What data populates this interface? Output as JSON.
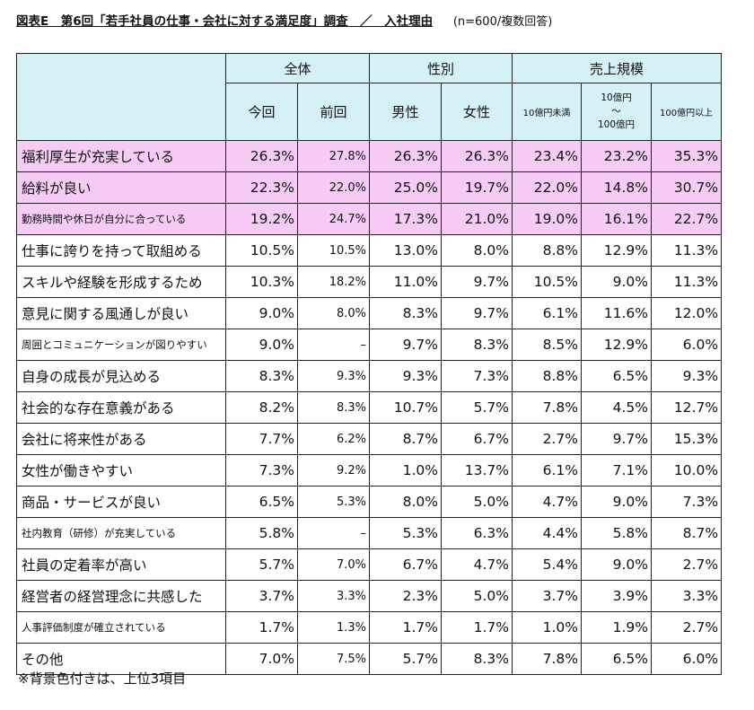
{
  "title": {
    "main": "図表E　第6回「若手社員の仕事・会社に対する満足度」調査　／　入社理由",
    "note": "(n=600/複数回答)"
  },
  "headers": {
    "groups": [
      "全体",
      "性別",
      "売上規模"
    ],
    "columns": [
      "今回",
      "前回",
      "男性",
      "女性",
      "10億円未満",
      "10億円\n～\n100億円",
      "100億円以上"
    ]
  },
  "rows": [
    {
      "label": "福利厚生が充実している",
      "values": [
        "26.3%",
        "27.8%",
        "26.3%",
        "26.3%",
        "23.4%",
        "23.2%",
        "35.3%"
      ],
      "top": true
    },
    {
      "label": "給料が良い",
      "values": [
        "22.3%",
        "22.0%",
        "25.0%",
        "19.7%",
        "22.0%",
        "14.8%",
        "30.7%"
      ],
      "top": true
    },
    {
      "label": "勤務時間や休日が自分に合っている",
      "values": [
        "19.2%",
        "24.7%",
        "17.3%",
        "21.0%",
        "19.0%",
        "16.1%",
        "22.7%"
      ],
      "top": true,
      "small": true
    },
    {
      "label": "仕事に誇りを持って取組める",
      "values": [
        "10.5%",
        "10.5%",
        "13.0%",
        "8.0%",
        "8.8%",
        "12.9%",
        "11.3%"
      ]
    },
    {
      "label": "スキルや経験を形成するため",
      "values": [
        "10.3%",
        "18.2%",
        "11.0%",
        "9.7%",
        "10.5%",
        "9.0%",
        "11.3%"
      ]
    },
    {
      "label": "意見に関する風通しが良い",
      "values": [
        "9.0%",
        "8.0%",
        "8.3%",
        "9.7%",
        "6.1%",
        "11.6%",
        "12.0%"
      ]
    },
    {
      "label": "周囲とコミュニケーションが図りやすい",
      "values": [
        "9.0%",
        "–",
        "9.7%",
        "8.3%",
        "8.5%",
        "12.9%",
        "6.0%"
      ],
      "small": true
    },
    {
      "label": "自身の成長が見込める",
      "values": [
        "8.3%",
        "9.3%",
        "9.3%",
        "7.3%",
        "8.8%",
        "6.5%",
        "9.3%"
      ]
    },
    {
      "label": "社会的な存在意義がある",
      "values": [
        "8.2%",
        "8.3%",
        "10.7%",
        "5.7%",
        "7.8%",
        "4.5%",
        "12.7%"
      ]
    },
    {
      "label": "会社に将来性がある",
      "values": [
        "7.7%",
        "6.2%",
        "8.7%",
        "6.7%",
        "2.7%",
        "9.7%",
        "15.3%"
      ]
    },
    {
      "label": "女性が働きやすい",
      "values": [
        "7.3%",
        "9.2%",
        "1.0%",
        "13.7%",
        "6.1%",
        "7.1%",
        "10.0%"
      ]
    },
    {
      "label": "商品・サービスが良い",
      "values": [
        "6.5%",
        "5.3%",
        "8.0%",
        "5.0%",
        "4.7%",
        "9.0%",
        "7.3%"
      ]
    },
    {
      "label": "社内教育（研修）が充実している",
      "values": [
        "5.8%",
        "–",
        "5.3%",
        "6.3%",
        "4.4%",
        "5.8%",
        "8.7%"
      ],
      "small": true
    },
    {
      "label": "社員の定着率が高い",
      "values": [
        "5.7%",
        "7.0%",
        "6.7%",
        "4.7%",
        "5.4%",
        "9.0%",
        "2.7%"
      ]
    },
    {
      "label": "経営者の経営理念に共感した",
      "values": [
        "3.7%",
        "3.3%",
        "2.3%",
        "5.0%",
        "3.7%",
        "3.9%",
        "3.3%"
      ]
    },
    {
      "label": "人事評価制度が確立されている",
      "values": [
        "1.7%",
        "1.3%",
        "1.7%",
        "1.7%",
        "1.0%",
        "1.9%",
        "2.7%"
      ],
      "small": true
    },
    {
      "label": "その他",
      "values": [
        "7.0%",
        "7.5%",
        "5.7%",
        "8.3%",
        "7.8%",
        "6.5%",
        "6.0%"
      ]
    }
  ],
  "footnote": "※背景色付きは、上位3項目",
  "colors": {
    "header_bg": "#d4f1f6",
    "top3_bg": "#f6ccf6"
  }
}
